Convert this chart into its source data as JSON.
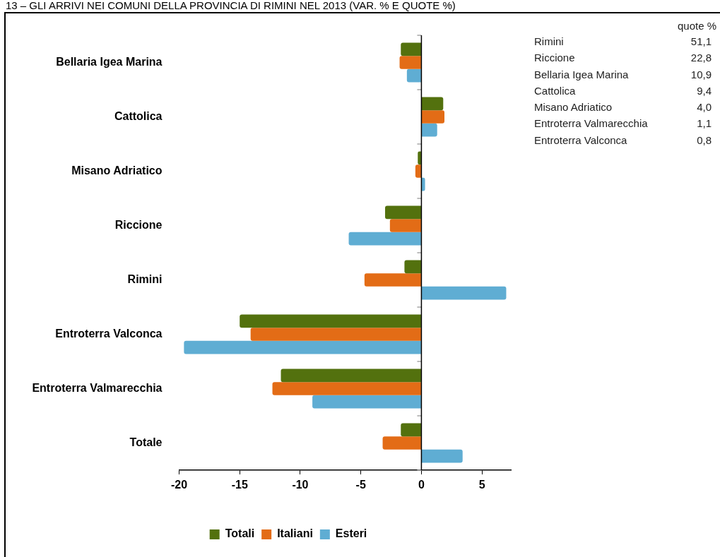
{
  "chart_data": [
    {
      "type": "bar",
      "title": "13 – GLI ARRIVI NEI COMUNI DELLA PROVINCIA DI RIMINI NEL 2013 (VAR. % E QUOTE %)",
      "orientation": "horizontal",
      "categories": [
        "Bellaria Igea Marina",
        "Cattolica",
        "Misano Adriatico",
        "Riccione",
        "Rimini",
        "Entroterra Valconca",
        "Entroterra Valmarecchia",
        "Totale"
      ],
      "series": [
        {
          "name": "Totali",
          "color": "#53710e",
          "values": [
            -1.7,
            1.8,
            -0.3,
            -3.0,
            -1.4,
            -15.0,
            -11.6,
            -1.7
          ]
        },
        {
          "name": "Italiani",
          "color": "#e36c16",
          "values": [
            -1.8,
            1.9,
            -0.5,
            -2.6,
            -4.7,
            -14.1,
            -12.3,
            -3.2
          ]
        },
        {
          "name": "Esteri",
          "color": "#5fadd3",
          "values": [
            -1.2,
            1.3,
            0.3,
            -6.0,
            7.0,
            -19.6,
            -9.0,
            3.4
          ]
        }
      ],
      "xlim": [
        -20,
        7.4
      ],
      "xticks": [
        -20,
        -15,
        -10,
        -5,
        0,
        5
      ],
      "legend": "bottom"
    },
    {
      "type": "other",
      "title": "quote %",
      "categories": [
        "Rimini",
        "Riccione",
        "Bellaria Igea Marina",
        "Cattolica",
        "Misano Adriatico",
        "Entroterra Valmarecchia",
        "Entroterra Valconca"
      ],
      "values": [
        51.1,
        22.8,
        10.9,
        9.4,
        4.0,
        1.1,
        0.8
      ],
      "value_labels": [
        "51,1",
        "22,8",
        "10,9",
        "9,4",
        "4,0",
        "1,1",
        "0,8"
      ]
    }
  ]
}
